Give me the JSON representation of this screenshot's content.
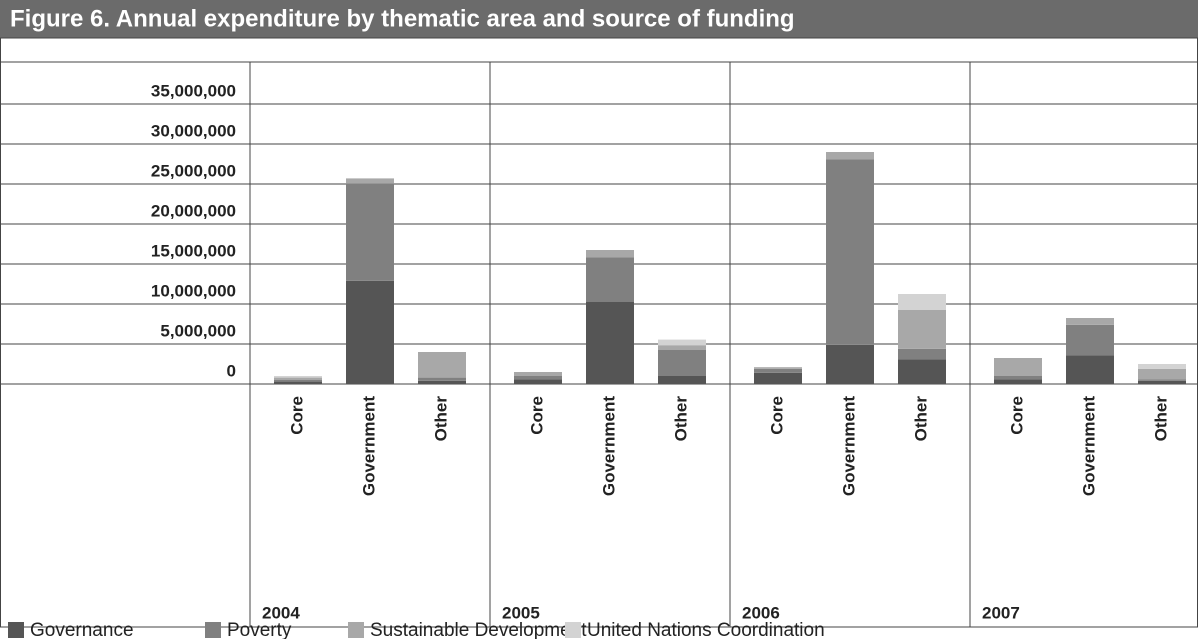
{
  "chart_data": {
    "type": "stacked_bar",
    "title": "Figure 6. Annual expenditure by thematic area and source of funding",
    "groups": [
      "2004",
      "2005",
      "2006",
      "2007"
    ],
    "categories": [
      "Core",
      "Government",
      "Other",
      "Core",
      "Government",
      "Other",
      "Core",
      "Government",
      "Other",
      "Core",
      "Government",
      "Other"
    ],
    "series": [
      {
        "name": "Governance",
        "color": "#555555",
        "values": [
          300000,
          12900000,
          400000,
          600000,
          10250000,
          1000000,
          1400000,
          4900000,
          3100000,
          600000,
          3600000,
          400000
        ]
      },
      {
        "name": "Poverty",
        "color": "#808080",
        "values": [
          200000,
          12200000,
          400000,
          400000,
          5600000,
          3250000,
          500000,
          23200000,
          1300000,
          400000,
          3800000,
          200000
        ]
      },
      {
        "name": "Sustainable Development",
        "color": "#a8a8a8",
        "values": [
          300000,
          600000,
          3200000,
          500000,
          900000,
          600000,
          200000,
          900000,
          4850000,
          2250000,
          850000,
          1300000
        ]
      },
      {
        "name": "United Nations Coordination",
        "color": "#d3d3d3",
        "values": [
          200000,
          0,
          0,
          0,
          0,
          700000,
          0,
          0,
          2000000,
          0,
          0,
          600000
        ]
      }
    ],
    "ylim": [
      0,
      40000000
    ],
    "yticks": [
      {
        "value": 0,
        "label": "0"
      },
      {
        "value": 5000000,
        "label": "5,000,000"
      },
      {
        "value": 10000000,
        "label": "10,000,000"
      },
      {
        "value": 15000000,
        "label": "15,000,000"
      },
      {
        "value": 20000000,
        "label": "20,000,000"
      },
      {
        "value": 25000000,
        "label": "25,000,000"
      },
      {
        "value": 30000000,
        "label": "30,000,000"
      },
      {
        "value": 35000000,
        "label": "35,000,000"
      }
    ],
    "grid": true
  }
}
